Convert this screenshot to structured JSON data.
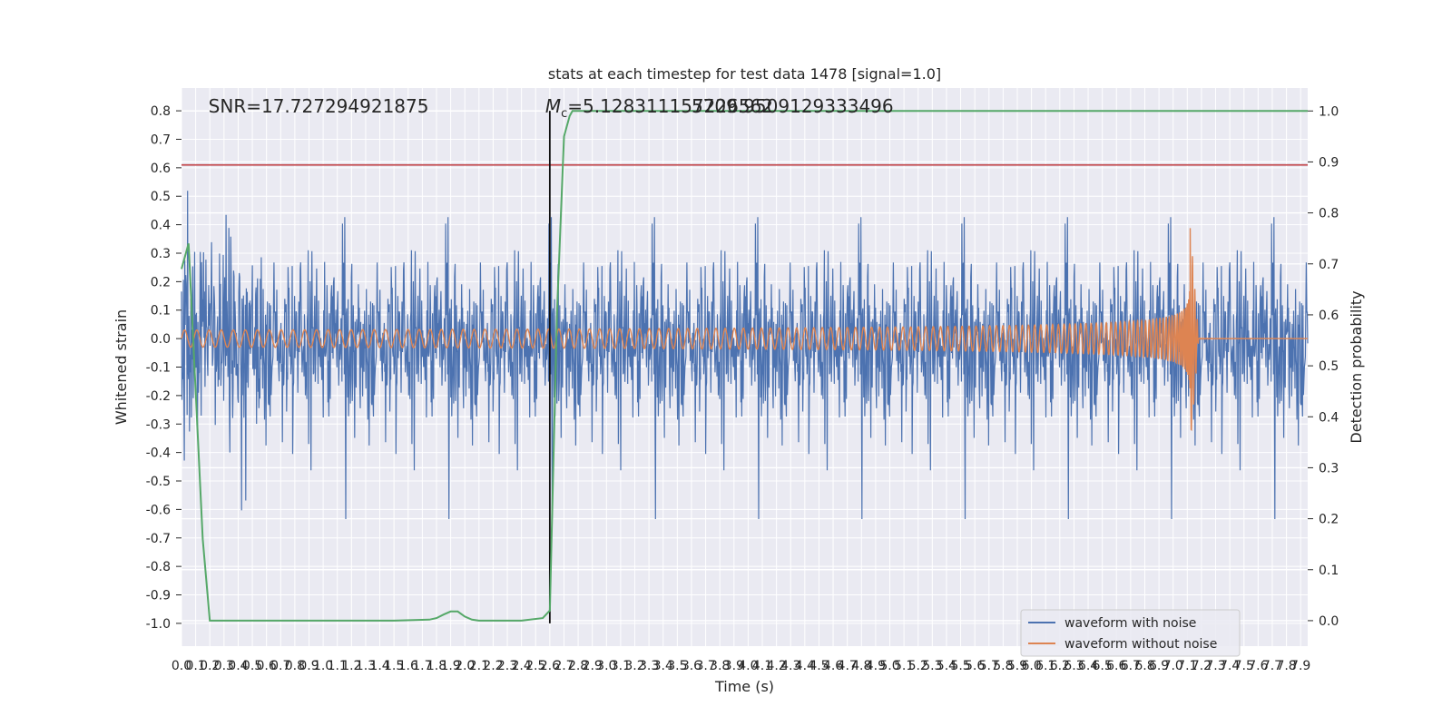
{
  "chart_data": {
    "type": "line",
    "title": "stats at each timestep for test data 1478 [signal=1.0]",
    "xlabel": "Time (s)",
    "ylabel": "Whitened strain",
    "y2label": "Detection probability",
    "xlim": [
      0.0,
      7.95
    ],
    "ylim": [
      -1.08,
      0.88
    ],
    "y2lim": [
      -0.05,
      1.045
    ],
    "x_tick_step": 0.1,
    "x_tick_max": 7.9,
    "y_ticks": [
      -1.0,
      -0.9,
      -0.8,
      -0.7,
      -0.6,
      -0.5,
      -0.4,
      -0.3,
      -0.2,
      -0.1,
      0.0,
      0.1,
      0.2,
      0.3,
      0.4,
      0.5,
      0.6,
      0.7,
      0.8
    ],
    "y2_ticks": [
      0.0,
      0.1,
      0.2,
      0.3,
      0.4,
      0.5,
      0.6,
      0.7,
      0.8,
      0.9,
      1.0
    ],
    "grid": true,
    "annotations": {
      "snr": "SNR=17.727294921875",
      "mc_symbol": "M",
      "mc_sub": "c",
      "mc_value": "=5.128311157226562",
      "mc_overlap": "5709.9509129333496"
    },
    "merger_time": 2.6,
    "threshold_line": {
      "y": 0.61,
      "color": "#c44e52"
    },
    "series": [
      {
        "name": "waveform with noise",
        "color": "#4c72b0",
        "style": "noise",
        "amplitude_typical": 0.3,
        "peak_max": 0.8,
        "peak_min": -0.98
      },
      {
        "name": "waveform without noise",
        "color": "#dd8452",
        "style": "chirp",
        "start_amplitude": 0.03,
        "peak_amplitude_pos": 0.4,
        "peak_amplitude_neg": -0.32,
        "merger_t": 7.12,
        "ringdown_end": 7.18
      },
      {
        "name": "Detection probability",
        "color": "#55a868",
        "axis": "right",
        "x": [
          0.0,
          0.05,
          0.1,
          0.15,
          0.2,
          0.25,
          0.5,
          1.0,
          1.5,
          1.75,
          1.8,
          1.85,
          1.9,
          1.95,
          2.0,
          2.05,
          2.1,
          2.2,
          2.4,
          2.55,
          2.6,
          2.65,
          2.7,
          2.72,
          2.74,
          2.76,
          2.8,
          3.0,
          4.0,
          5.0,
          6.0,
          7.0,
          7.95
        ],
        "y": [
          0.69,
          0.74,
          0.45,
          0.16,
          0.0,
          0.0,
          0.0,
          0.0,
          0.0,
          0.002,
          0.005,
          0.012,
          0.018,
          0.018,
          0.008,
          0.002,
          0.0,
          0.0,
          0.0,
          0.005,
          0.02,
          0.6,
          0.95,
          0.97,
          0.99,
          1.0,
          1.0,
          1.0,
          1.0,
          1.0,
          1.0,
          1.0,
          1.0
        ]
      }
    ],
    "legend": {
      "position": "lower-right",
      "entries": [
        "waveform with noise",
        "waveform without noise"
      ]
    }
  }
}
